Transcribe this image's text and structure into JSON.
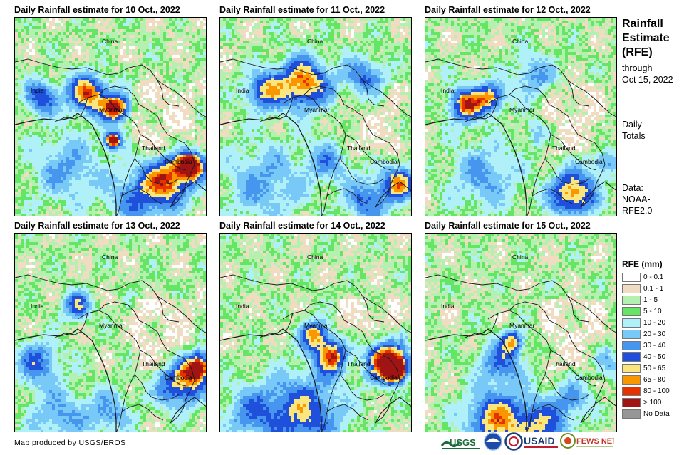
{
  "panels": [
    {
      "title": "Daily Rainfall estimate for 10 Oct., 2022"
    },
    {
      "title": "Daily Rainfall estimate for 11 Oct., 2022"
    },
    {
      "title": "Daily Rainfall estimate for 12 Oct., 2022"
    },
    {
      "title": "Daily Rainfall estimate for 13 Oct., 2022"
    },
    {
      "title": "Daily Rainfall estimate for 14 Oct., 2022"
    },
    {
      "title": "Daily Rainfall estimate for 15 Oct., 2022"
    }
  ],
  "places": {
    "china": "China",
    "india": "India",
    "myanmar": "Myanmar",
    "thailand": "Thailand",
    "cambodia": "Cambodia"
  },
  "side": {
    "title_line1": "Rainfall",
    "title_line2": "Estimate",
    "title_line3": "(RFE)",
    "through_line1": "through",
    "through_line2": "Oct 15, 2022",
    "daily_line1": "Daily",
    "daily_line2": "Totals",
    "data_line1": "Data:",
    "data_line2": "NOAA-",
    "data_line3": "RFE2.0"
  },
  "legend": {
    "title": "RFE (mm)",
    "items": [
      {
        "label": "0 - 0.1",
        "color": "#ffffff"
      },
      {
        "label": "0.1 - 1",
        "color": "#f0dcc0"
      },
      {
        "label": "1 - 5",
        "color": "#b4f0b0"
      },
      {
        "label": "5 - 10",
        "color": "#64e664"
      },
      {
        "label": "10 - 20",
        "color": "#b0f0f8"
      },
      {
        "label": "20 - 30",
        "color": "#78c8f8"
      },
      {
        "label": "30 - 40",
        "color": "#4696f0"
      },
      {
        "label": "40 - 50",
        "color": "#1e50dc"
      },
      {
        "label": "50 - 65",
        "color": "#fae67d"
      },
      {
        "label": "65 - 80",
        "color": "#fa9600"
      },
      {
        "label": "80 - 100",
        "color": "#e63200"
      },
      {
        "label": "> 100",
        "color": "#a01414"
      },
      {
        "label": "No Data",
        "color": "#969696"
      }
    ]
  },
  "credit": "Map produced by USGS/EROS",
  "logos": {
    "usgs": "USGS",
    "usaid": "USAID",
    "fewsnet": "FEWS NET"
  }
}
